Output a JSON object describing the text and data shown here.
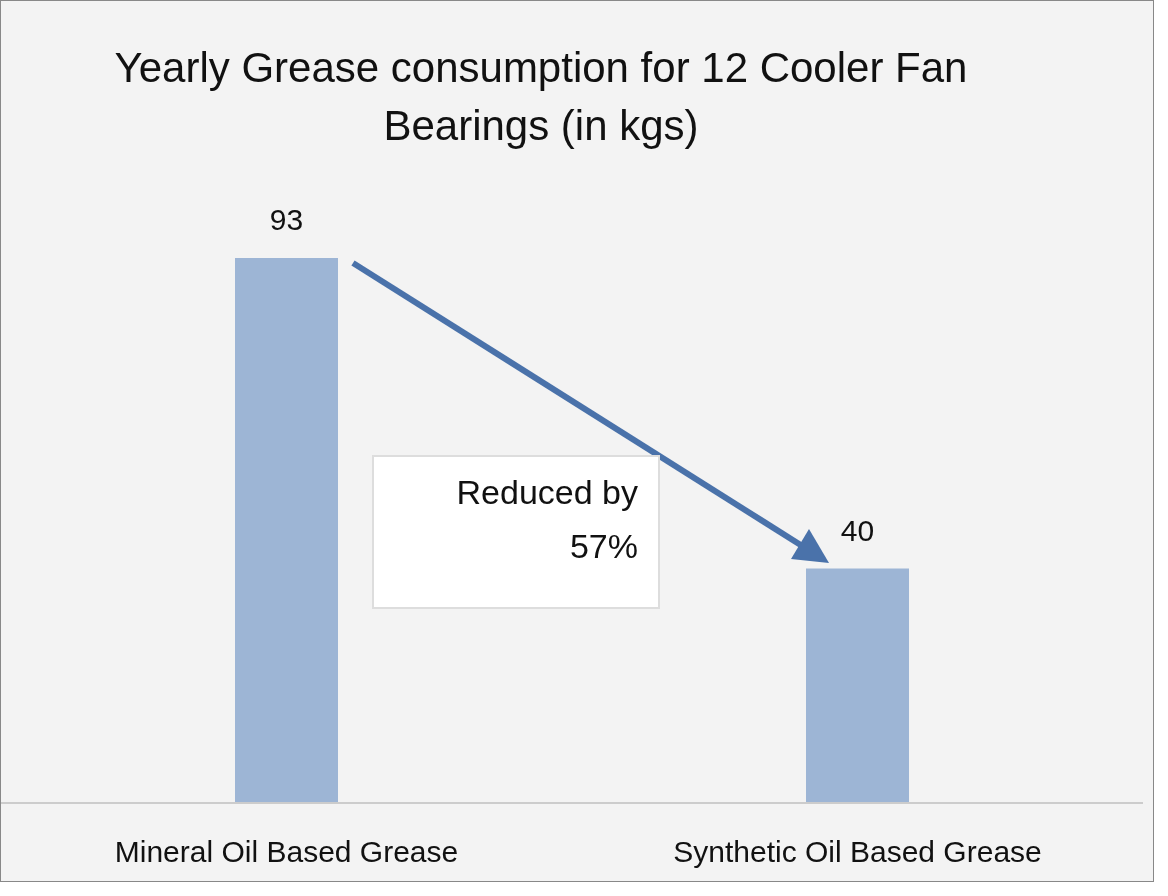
{
  "chart_data": {
    "type": "bar",
    "title": "Yearly Grease consumption for 12 Cooler Fan Bearings (in kgs)",
    "categories": [
      "Mineral Oil Based Grease",
      "Synthetic Oil Based Grease"
    ],
    "values": [
      93,
      40
    ],
    "color": "#9db5d5",
    "data_labels": true,
    "grid": false,
    "annotations": [
      "Reduced by 57%"
    ]
  }
}
